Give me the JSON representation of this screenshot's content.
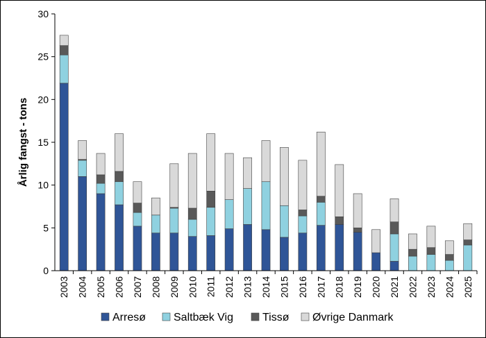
{
  "chart_data": {
    "type": "bar",
    "stacked": true,
    "title": "",
    "xlabel": "",
    "ylabel": "Årlig fangst - tons",
    "ylim": [
      0,
      30
    ],
    "yticks": [
      0,
      5,
      10,
      15,
      20,
      25,
      30
    ],
    "grid": false,
    "legend_position": "bottom",
    "categories": [
      "2003",
      "2004",
      "2005",
      "2006",
      "2007",
      "2008",
      "2009",
      "2010",
      "2011",
      "2012",
      "2013",
      "2014",
      "2015",
      "2016",
      "2017",
      "2018",
      "2019",
      "2020",
      "2021",
      "2022",
      "2023",
      "2024",
      "2025"
    ],
    "series": [
      {
        "name": "Arresø",
        "color": "#2f5597",
        "values": [
          21.9,
          11.0,
          9.0,
          7.7,
          5.2,
          4.4,
          4.4,
          4.0,
          4.1,
          4.9,
          5.4,
          4.8,
          3.9,
          4.4,
          5.3,
          5.4,
          4.5,
          2.1,
          1.1,
          0.0,
          0.0,
          0.0,
          0.0
        ]
      },
      {
        "name": "Saltbæk Vig",
        "color": "#8fd1e0",
        "values": [
          3.3,
          1.9,
          1.2,
          2.7,
          1.6,
          2.1,
          2.9,
          2.0,
          3.3,
          3.4,
          4.2,
          5.6,
          3.7,
          2.0,
          2.7,
          0.0,
          0.0,
          0.0,
          3.2,
          1.7,
          1.9,
          1.2,
          3.0
        ]
      },
      {
        "name": "Tissø",
        "color": "#595959",
        "values": [
          1.1,
          0.1,
          1.0,
          1.2,
          1.1,
          0.0,
          0.1,
          1.3,
          1.9,
          0.0,
          0.0,
          0.0,
          0.0,
          0.7,
          0.7,
          0.9,
          0.5,
          0.0,
          1.4,
          0.8,
          0.8,
          0.7,
          0.6
        ]
      },
      {
        "name": "Øvrige Danmark",
        "color": "#d9d9d9",
        "values": [
          1.2,
          2.2,
          2.5,
          4.4,
          2.5,
          2.0,
          5.1,
          6.4,
          6.7,
          5.4,
          3.6,
          4.8,
          6.8,
          5.8,
          7.5,
          6.1,
          4.0,
          2.7,
          2.7,
          1.8,
          2.5,
          1.6,
          1.9
        ]
      }
    ]
  }
}
